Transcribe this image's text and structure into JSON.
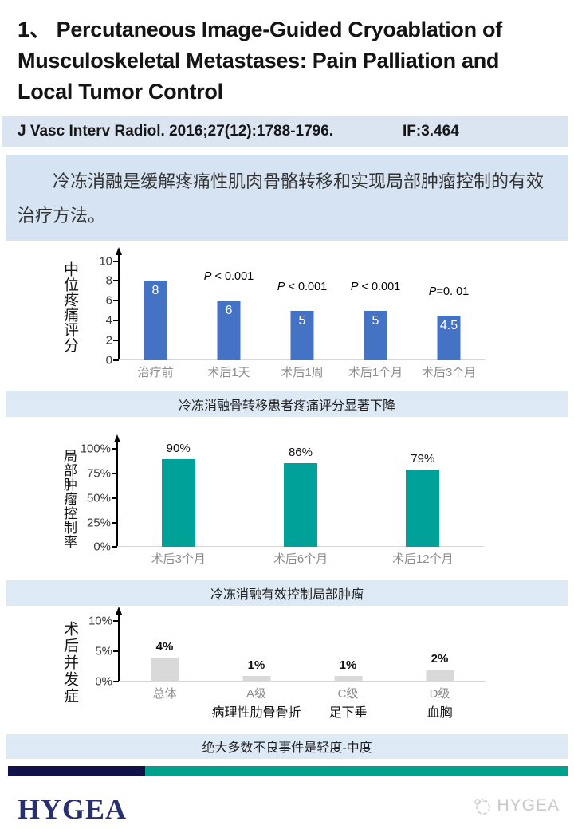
{
  "slide": {
    "title": "1、 Percutaneous Image-Guided Cryoablation of Musculoskeletal Metastases: Pain Palliation and Local Tumor Control",
    "reference": {
      "citation": "J Vasc Interv Radiol. 2016;27(12):1788-1796.",
      "impact_factor": "IF:3.464"
    },
    "summary": "冷冻消融是缓解疼痛性肌肉骨骼转移和实现局部肿瘤控制的有效治疗方法。"
  },
  "chart_data": [
    {
      "type": "bar",
      "ylabel": "中位疼痛评分",
      "categories": [
        "治疗前",
        "术后1天",
        "术后1周",
        "术后1个月",
        "术后3个月"
      ],
      "values": [
        8,
        6,
        5,
        5,
        4.5
      ],
      "bar_labels": [
        "8",
        "6",
        "5",
        "5",
        "4.5"
      ],
      "annotations": [
        "",
        "P < 0.001",
        "P < 0.001",
        "P < 0.001",
        "P=0. 01"
      ],
      "yticks": [
        "10",
        "8",
        "6",
        "4",
        "2",
        "0"
      ],
      "ylim": [
        0,
        10
      ],
      "grid": false,
      "legend": "none",
      "bar_color": "#4472C4",
      "caption": "冷冻消融骨转移患者疼痛评分显著下降"
    },
    {
      "type": "bar",
      "ylabel": "局部肿瘤控制率",
      "categories": [
        "术后3个月",
        "术后6个月",
        "术后12个月"
      ],
      "values": [
        90,
        86,
        79
      ],
      "bar_labels": [
        "90%",
        "86%",
        "79%"
      ],
      "yticks": [
        "100%",
        "75%",
        "50%",
        "25%",
        "0%"
      ],
      "ylim": [
        0,
        100
      ],
      "grid": false,
      "legend": "none",
      "bar_color": "#00A199",
      "caption": "冷冻消融有效控制局部肿瘤"
    },
    {
      "type": "bar",
      "ylabel": "术后并发症",
      "categories": [
        "总体",
        "A级",
        "C级",
        "D级"
      ],
      "sub_categories": [
        "",
        "病理性肋骨骨折",
        "足下垂",
        "血胸"
      ],
      "values": [
        4,
        1,
        1,
        2
      ],
      "bar_labels": [
        "4%",
        "1%",
        "1%",
        "2%"
      ],
      "yticks": [
        "10%",
        "5%",
        "0%"
      ],
      "ylim": [
        0,
        10
      ],
      "grid": false,
      "legend": "none",
      "bar_color": "#D9D9D9",
      "caption": "绝大多数不良事件是轻度-中度"
    }
  ],
  "footer": {
    "logo_text": "HYGEA",
    "watermark_text": "HYGEA"
  },
  "colors": {
    "pain_bar_blue": "#4472C4",
    "tumor_bar_teal": "#00A199",
    "complication_bar_gray": "#D9D9D9",
    "band_light_blue": "#DDE9F5",
    "footer_navy": "#12124A",
    "footer_teal": "#00A08F",
    "logo_navy": "#28306E"
  }
}
